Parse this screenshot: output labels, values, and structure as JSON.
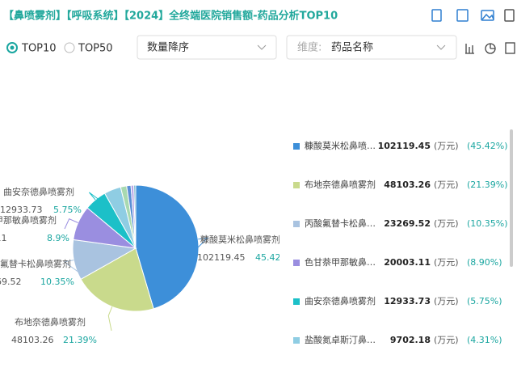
{
  "header": {
    "title": "【鼻喷雾剂】【呼吸系统】【2024】全终端医院销售额-药品分析TOP10",
    "radio_top10": "TOP10",
    "radio_top50": "TOP50",
    "sort_select": "数量降序",
    "dimension_label": "维度:",
    "dimension_value": "药品名称"
  },
  "chart_data": {
    "type": "pie",
    "categories": [
      "糠酸莫米松鼻喷雾剂",
      "布地奈德鼻喷雾剂",
      "丙酸氟替卡松鼻喷雾剂",
      "色甘萘甲那敏鼻喷雾剂",
      "曲安奈德鼻喷雾剂",
      "盐酸氮卓斯汀鼻喷雾剂",
      null,
      null,
      null,
      null
    ],
    "values": [
      102119.45,
      48103.26,
      23269.52,
      20003.11,
      12933.73,
      9702.18,
      3500,
      2500,
      1600,
      1100
    ],
    "colors": [
      "#3d8fd9",
      "#c9da8c",
      "#a9c3e0",
      "#9a8ee0",
      "#1cc0c8",
      "#8fcde3",
      "#a8d9b0",
      "#5b8fd5",
      "#b7a6e6",
      "#7cb8d0"
    ],
    "unit": "(万元)",
    "legend_percent_labels": [
      "(45.42%)",
      "(21.39%)",
      "(10.35%)",
      "(8.90%)",
      "(5.75%)",
      "(4.31%)",
      null,
      null,
      null,
      null
    ],
    "pie_percent_labels": [
      "45.42%",
      "21.39%",
      "10.35%",
      "8.9%",
      "5.75%",
      null,
      null,
      null,
      null,
      null
    ]
  }
}
